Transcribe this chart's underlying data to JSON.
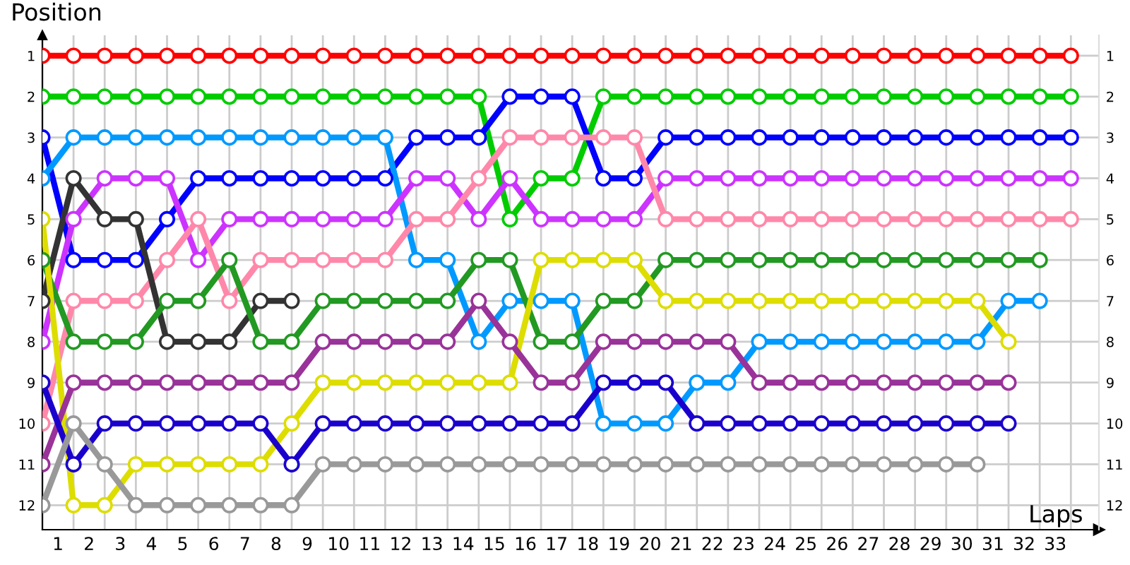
{
  "chart_data": {
    "type": "line",
    "xlabel": "Laps",
    "ylabel": "Position",
    "x": [
      0,
      1,
      2,
      3,
      4,
      5,
      6,
      7,
      8,
      9,
      10,
      11,
      12,
      13,
      14,
      15,
      16,
      17,
      18,
      19,
      20,
      21,
      22,
      23,
      24,
      25,
      26,
      27,
      28,
      29,
      30,
      31,
      32,
      33
    ],
    "series": [
      {
        "color": "#ff0000",
        "values": [
          1,
          1,
          1,
          1,
          1,
          1,
          1,
          1,
          1,
          1,
          1,
          1,
          1,
          1,
          1,
          1,
          1,
          1,
          1,
          1,
          1,
          1,
          1,
          1,
          1,
          1,
          1,
          1,
          1,
          1,
          1,
          1,
          1,
          1
        ]
      },
      {
        "color": "#00cc00",
        "values": [
          2,
          2,
          2,
          2,
          2,
          2,
          2,
          2,
          2,
          2,
          2,
          2,
          2,
          2,
          2,
          5,
          4,
          4,
          2,
          2,
          2,
          2,
          2,
          2,
          2,
          2,
          2,
          2,
          2,
          2,
          2,
          2,
          2,
          2
        ]
      },
      {
        "color": "#0000ff",
        "values": [
          3,
          6,
          6,
          6,
          5,
          4,
          4,
          4,
          4,
          4,
          4,
          4,
          3,
          3,
          3,
          2,
          2,
          2,
          4,
          4,
          3,
          3,
          3,
          3,
          3,
          3,
          3,
          3,
          3,
          3,
          3,
          3,
          3,
          3
        ]
      },
      {
        "color": "#0099ff",
        "values": [
          4,
          3,
          3,
          3,
          3,
          3,
          3,
          3,
          3,
          3,
          3,
          3,
          6,
          6,
          8,
          7,
          7,
          7,
          10,
          10,
          10,
          9,
          9,
          8,
          8,
          8,
          8,
          8,
          8,
          8,
          8,
          7,
          7,
          null
        ]
      },
      {
        "color": "#cc33ff",
        "values": [
          8,
          5,
          4,
          4,
          4,
          6,
          5,
          5,
          5,
          5,
          5,
          5,
          4,
          4,
          5,
          4,
          5,
          5,
          5,
          5,
          4,
          4,
          4,
          4,
          4,
          4,
          4,
          4,
          4,
          4,
          4,
          4,
          4,
          4
        ]
      },
      {
        "color": "#ff88aa",
        "values": [
          10,
          7,
          7,
          7,
          6,
          5,
          7,
          6,
          6,
          6,
          6,
          6,
          5,
          5,
          4,
          3,
          3,
          3,
          3,
          3,
          5,
          5,
          5,
          5,
          5,
          5,
          5,
          5,
          5,
          5,
          5,
          5,
          5,
          5
        ]
      },
      {
        "color": "#333333",
        "values": [
          7,
          4,
          5,
          5,
          8,
          8,
          8,
          7,
          7,
          null,
          null,
          null,
          null,
          null,
          null,
          null,
          null,
          null,
          null,
          null,
          null,
          null,
          null,
          null,
          null,
          null,
          null,
          null,
          null,
          null,
          null,
          null,
          null,
          null
        ]
      },
      {
        "color": "#229922",
        "values": [
          6,
          8,
          8,
          8,
          7,
          7,
          6,
          8,
          8,
          7,
          7,
          7,
          7,
          7,
          6,
          6,
          8,
          8,
          7,
          7,
          6,
          6,
          6,
          6,
          6,
          6,
          6,
          6,
          6,
          6,
          6,
          6,
          6,
          null
        ]
      },
      {
        "color": "#dddd00",
        "values": [
          5,
          12,
          12,
          11,
          11,
          11,
          11,
          11,
          10,
          9,
          9,
          9,
          9,
          9,
          9,
          9,
          6,
          6,
          6,
          6,
          7,
          7,
          7,
          7,
          7,
          7,
          7,
          7,
          7,
          7,
          7,
          8,
          null,
          null
        ]
      },
      {
        "color": "#993399",
        "values": [
          11,
          9,
          9,
          9,
          9,
          9,
          9,
          9,
          9,
          8,
          8,
          8,
          8,
          8,
          7,
          8,
          9,
          9,
          8,
          8,
          8,
          8,
          8,
          9,
          9,
          9,
          9,
          9,
          9,
          9,
          9,
          9,
          null,
          null
        ]
      },
      {
        "color": "#1a00cc",
        "values": [
          9,
          11,
          10,
          10,
          10,
          10,
          10,
          10,
          11,
          10,
          10,
          10,
          10,
          10,
          10,
          10,
          10,
          10,
          9,
          9,
          9,
          10,
          10,
          10,
          10,
          10,
          10,
          10,
          10,
          10,
          10,
          10,
          null,
          null
        ]
      },
      {
        "color": "#999999",
        "values": [
          12,
          10,
          11,
          12,
          12,
          12,
          12,
          12,
          12,
          11,
          11,
          11,
          11,
          11,
          11,
          11,
          11,
          11,
          11,
          11,
          11,
          11,
          11,
          11,
          11,
          11,
          11,
          11,
          11,
          11,
          11,
          null,
          null,
          null
        ]
      }
    ],
    "xlim": [
      0,
      33.9
    ],
    "xticks": [
      {
        "value": 0,
        "label": null
      },
      {
        "value": 0.5,
        "label": "1"
      },
      {
        "value": 1,
        "label": null
      },
      {
        "value": 1.5,
        "label": "2"
      },
      {
        "value": 2,
        "label": null
      },
      {
        "value": 2.5,
        "label": "3"
      },
      {
        "value": 3,
        "label": null
      },
      {
        "value": 3.5,
        "label": "4"
      },
      {
        "value": 4,
        "label": null
      },
      {
        "value": 4.5,
        "label": "5"
      },
      {
        "value": 5,
        "label": null
      },
      {
        "value": 5.5,
        "label": "6"
      },
      {
        "value": 6,
        "label": null
      },
      {
        "value": 6.5,
        "label": "7"
      },
      {
        "value": 7,
        "label": null
      },
      {
        "value": 7.5,
        "label": "8"
      },
      {
        "value": 8,
        "label": null
      },
      {
        "value": 8.5,
        "label": "9"
      },
      {
        "value": 9,
        "label": null
      },
      {
        "value": 9.5,
        "label": "10"
      },
      {
        "value": 10,
        "label": null
      },
      {
        "value": 10.5,
        "label": "11"
      },
      {
        "value": 11,
        "label": null
      },
      {
        "value": 11.5,
        "label": "12"
      },
      {
        "value": 12,
        "label": null
      },
      {
        "value": 12.5,
        "label": "13"
      },
      {
        "value": 13,
        "label": null
      },
      {
        "value": 13.5,
        "label": "14"
      },
      {
        "value": 14,
        "label": null
      },
      {
        "value": 14.5,
        "label": "15"
      },
      {
        "value": 15,
        "label": null
      },
      {
        "value": 15.5,
        "label": "16"
      },
      {
        "value": 16,
        "label": null
      },
      {
        "value": 16.5,
        "label": "17"
      },
      {
        "value": 17,
        "label": null
      },
      {
        "value": 17.5,
        "label": "18"
      },
      {
        "value": 18,
        "label": null
      },
      {
        "value": 18.5,
        "label": "19"
      },
      {
        "value": 19,
        "label": null
      },
      {
        "value": 19.5,
        "label": "20"
      },
      {
        "value": 20,
        "label": null
      },
      {
        "value": 20.5,
        "label": "21"
      },
      {
        "value": 21,
        "label": null
      },
      {
        "value": 21.5,
        "label": "22"
      },
      {
        "value": 22,
        "label": null
      },
      {
        "value": 22.5,
        "label": "23"
      },
      {
        "value": 23,
        "label": null
      },
      {
        "value": 23.5,
        "label": "24"
      },
      {
        "value": 24,
        "label": null
      },
      {
        "value": 24.5,
        "label": "25"
      },
      {
        "value": 25,
        "label": null
      },
      {
        "value": 25.5,
        "label": "26"
      },
      {
        "value": 26,
        "label": null
      },
      {
        "value": 26.5,
        "label": "27"
      },
      {
        "value": 27,
        "label": null
      },
      {
        "value": 27.5,
        "label": "28"
      },
      {
        "value": 28,
        "label": null
      },
      {
        "value": 28.5,
        "label": "29"
      },
      {
        "value": 29,
        "label": null
      },
      {
        "value": 29.5,
        "label": "30"
      },
      {
        "value": 30,
        "label": null
      },
      {
        "value": 30.5,
        "label": "31"
      },
      {
        "value": 31,
        "label": null
      },
      {
        "value": 31.5,
        "label": "32"
      },
      {
        "value": 32,
        "label": null
      },
      {
        "value": 32.5,
        "label": "33"
      },
      {
        "value": 33,
        "label": null
      }
    ],
    "ylim": [
      12.6,
      0.5
    ],
    "yticks": [
      1,
      2,
      3,
      4,
      5,
      6,
      7,
      8,
      9,
      10,
      11,
      12
    ],
    "y2lim": [
      12.6,
      0.5
    ],
    "y2ticks": [
      1,
      2,
      3,
      4,
      5,
      6,
      7,
      8,
      9,
      10,
      11,
      12
    ],
    "grid": true,
    "marker": "circle",
    "line_style": "solid",
    "legend": false
  }
}
